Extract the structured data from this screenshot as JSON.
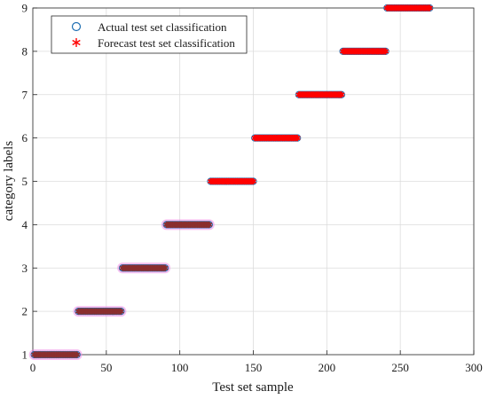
{
  "chart_data": {
    "type": "scatter",
    "title": "",
    "xlabel": "Test set sample",
    "ylabel": "category labels",
    "xlim": [
      0,
      300
    ],
    "ylim": [
      1,
      9
    ],
    "xticks": [
      0,
      50,
      100,
      150,
      200,
      250,
      300
    ],
    "yticks": [
      1,
      2,
      3,
      4,
      5,
      6,
      7,
      8,
      9
    ],
    "grid": true,
    "legend_position": "top-left",
    "segments": [
      {
        "class": 1,
        "x_start": 1,
        "x_end": 30
      },
      {
        "class": 2,
        "x_start": 31,
        "x_end": 60
      },
      {
        "class": 3,
        "x_start": 61,
        "x_end": 90
      },
      {
        "class": 4,
        "x_start": 91,
        "x_end": 120
      },
      {
        "class": 5,
        "x_start": 121,
        "x_end": 150
      },
      {
        "class": 6,
        "x_start": 151,
        "x_end": 180
      },
      {
        "class": 7,
        "x_start": 181,
        "x_end": 210
      },
      {
        "class": 8,
        "x_start": 211,
        "x_end": 240
      },
      {
        "class": 9,
        "x_start": 241,
        "x_end": 270
      }
    ],
    "series": [
      {
        "name": "Actual test set classification",
        "marker": "circle",
        "color": "#1f6fb2"
      },
      {
        "name": "Forecast test set classification",
        "marker": "asterisk",
        "color": "#ff0000"
      }
    ],
    "highlight_color": "#ee8ce6",
    "overlap_color": "#8b2f2f"
  }
}
